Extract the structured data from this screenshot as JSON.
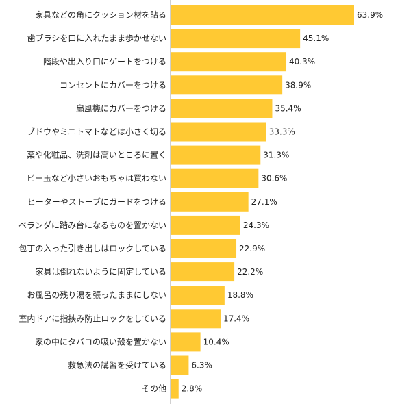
{
  "chart_data": {
    "type": "bar",
    "orientation": "horizontal",
    "categories": [
      "家具などの角にクッション材を貼る",
      "歯ブラシを口に入れたまま歩かせない",
      "階段や出入り口にゲートをつける",
      "コンセントにカバーをつける",
      "扇風機にカバーをつける",
      "ブドウやミニトマトなどは小さく切る",
      "薬や化粧品、洗剤は高いところに置く",
      "ビー玉など小さいおもちゃは買わない",
      "ヒーターやストーブにガードをつける",
      "ベランダに踏み台になるものを置かない",
      "包丁の入った引き出しはロックしている",
      "家具は倒れないように固定している",
      "お風呂の残り湯を張ったままにしない",
      "室内ドアに指挟み防止ロックをしている",
      "家の中にタバコの吸い殻を置かない",
      "救急法の講習を受けている",
      "その他"
    ],
    "values": [
      63.9,
      45.1,
      40.3,
      38.9,
      35.4,
      33.3,
      31.3,
      30.6,
      27.1,
      24.3,
      22.9,
      22.2,
      18.8,
      17.4,
      10.4,
      6.3,
      2.8
    ],
    "value_labels": [
      "63.9%",
      "45.1%",
      "40.3%",
      "38.9%",
      "35.4%",
      "33.3%",
      "31.3%",
      "30.6%",
      "27.1%",
      "24.3%",
      "22.9%",
      "22.2%",
      "18.8%",
      "17.4%",
      "10.4%",
      "6.3%",
      "2.8%"
    ],
    "title": "",
    "xlabel": "",
    "ylabel": "",
    "xlim": [
      0,
      75
    ],
    "grid": false,
    "legend": "none",
    "bar_color": "#FFC933",
    "axis_color": "#A0A0A0"
  }
}
